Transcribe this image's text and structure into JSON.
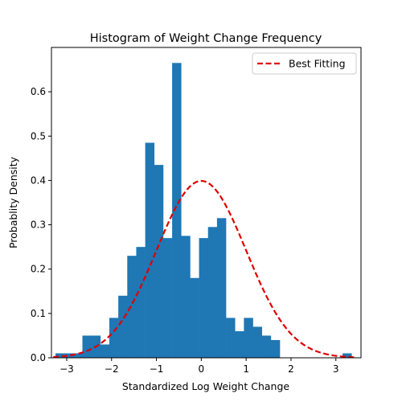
{
  "chart_data": {
    "type": "bar",
    "title": "Histogram of Weight Change Frequency",
    "xlabel": "Standardized Log Weight Change",
    "ylabel": "Probablity Density",
    "xlim": [
      -3.34,
      3.56
    ],
    "ylim": [
      0,
      0.7
    ],
    "xticks": [
      -3,
      -2,
      -1,
      0,
      1,
      2,
      3
    ],
    "xtick_labels": [
      "−3",
      "−2",
      "−1",
      "0",
      "1",
      "2",
      "3"
    ],
    "yticks": [
      0.0,
      0.1,
      0.2,
      0.3,
      0.4,
      0.5,
      0.6
    ],
    "ytick_labels": [
      "0.0",
      "0.1",
      "0.2",
      "0.3",
      "0.4",
      "0.5",
      "0.6"
    ],
    "grid": false,
    "legend_position": "top-right",
    "bin_width": 0.2,
    "bin_start": -3.25,
    "values": [
      0.01,
      0.01,
      0.01,
      0.05,
      0.05,
      0.03,
      0.09,
      0.14,
      0.23,
      0.25,
      0.485,
      0.435,
      0.27,
      0.665,
      0.275,
      0.18,
      0.27,
      0.295,
      0.315,
      0.09,
      0.06,
      0.09,
      0.07,
      0.05,
      0.04,
      0.0,
      0.0,
      0.0,
      0.0,
      0.0,
      0.0,
      0.0,
      0.01
    ],
    "bar_color": "#1f77b4",
    "fit_line": {
      "name": "Best Fitting",
      "distribution": "normal",
      "mean": 0,
      "std": 1,
      "color": "#e00000",
      "style": "dashed"
    }
  }
}
